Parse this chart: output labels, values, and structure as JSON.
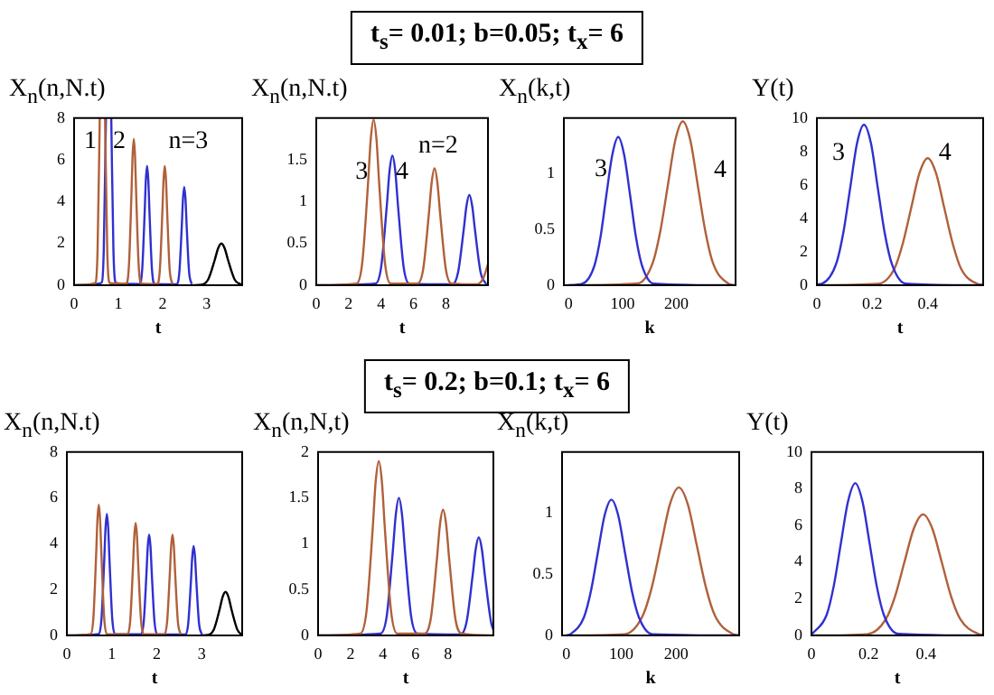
{
  "chart_data": [
    {
      "type": "other",
      "title": "t$_{s}$= 0.01; b=0.05; t$_{x}$= 6"
    },
    {
      "type": "line",
      "ylabel": "X$_{n}$(n,N.t)",
      "xlabel": "t",
      "xlim": [
        0,
        3.8
      ],
      "xticks": [
        0,
        1,
        2,
        3
      ],
      "ylim": [
        0,
        8
      ],
      "yticks": [
        0,
        2,
        4,
        6,
        8
      ],
      "marker": "none",
      "series": [
        {
          "color": "#b0603a",
          "x": [
            0,
            0.47,
            0.53,
            0.58,
            0.64,
            0.7,
            0.75,
            0.81,
            1.18,
            1.24,
            1.295,
            1.322,
            1.35,
            1.378,
            1.405,
            1.46,
            1.52,
            1.88,
            1.94,
            1.995,
            2.022,
            2.05,
            2.078,
            2.105,
            2.16,
            2.22
          ],
          "values": [
            0,
            0.1,
            1.6,
            8,
            null,
            8,
            1.6,
            0.1,
            0.08,
            0.95,
            4.25,
            6.17,
            7,
            6.17,
            4.25,
            0.95,
            0.08,
            0.06,
            0.77,
            3.46,
            5.03,
            5.7,
            5.03,
            3.46,
            0.77,
            0.06
          ]
        },
        {
          "color": "#3030d0",
          "x": [
            0,
            0.61,
            0.67,
            0.72,
            0.78,
            0.84,
            0.89,
            0.95,
            1.48,
            1.54,
            1.595,
            1.622,
            1.65,
            1.678,
            1.705,
            1.76,
            1.82,
            2.32,
            2.38,
            2.435,
            2.462,
            2.49,
            2.518,
            2.545,
            2.6,
            2.66
          ],
          "values": [
            0,
            0.1,
            1.6,
            8,
            null,
            8,
            1.6,
            0.1,
            0.06,
            0.77,
            3.46,
            5.03,
            5.7,
            5.03,
            3.46,
            0.77,
            0.06,
            0.05,
            0.63,
            2.85,
            4.15,
            4.7,
            4.15,
            2.85,
            0.63,
            0.05
          ]
        },
        {
          "color": "#000000",
          "x": [
            2.7,
            2.88,
            3.03,
            3.18,
            3.255,
            3.33,
            3.405,
            3.48,
            3.63,
            3.78
          ],
          "values": [
            0,
            0.02,
            0.27,
            1.21,
            1.76,
            2,
            1.76,
            1.21,
            0.27,
            0.02
          ]
        }
      ],
      "annotations": [
        {
          "text": "1",
          "x": 0.37,
          "y": 6.9
        },
        {
          "text": "2",
          "x": 1.02,
          "y": 6.9
        },
        "n=3"
      ]
    },
    {
      "type": "line",
      "ylabel": "X$_{n}$(n,N.t)",
      "xlabel": "t",
      "xlim": [
        0,
        10.6
      ],
      "xticks": [
        0,
        2,
        4,
        6,
        8
      ],
      "ylim": [
        0,
        2
      ],
      "yticks": [
        0,
        0.5,
        1,
        1.5
      ],
      "marker": "none",
      "series": [
        {
          "color": "#b0603a",
          "x": [
            0,
            2.49,
            2.84,
            3.19,
            3.365,
            3.54,
            3.715,
            3.89,
            4.24,
            4.59,
            6.25,
            6.6,
            6.95,
            7.125,
            7.3,
            7.475,
            7.65,
            8,
            8.35,
            9.9,
            10.3,
            10.6
          ],
          "values": [
            0,
            0.02,
            0.27,
            1.2,
            1.75,
            1.98,
            1.75,
            1.2,
            0.27,
            0.02,
            0.02,
            0.19,
            0.85,
            1.23,
            1.4,
            1.23,
            0.85,
            0.19,
            0.02,
            0.01,
            0.08,
            0.25
          ]
        },
        {
          "color": "#3030d0",
          "x": [
            0,
            3.65,
            4,
            4.35,
            4.525,
            4.7,
            4.875,
            5.05,
            5.4,
            5.75,
            8.4,
            8.75,
            9.1,
            9.275,
            9.45,
            9.625,
            9.8,
            10.15,
            10.5
          ],
          "values": [
            0,
            0.02,
            0.21,
            0.94,
            1.37,
            1.55,
            1.37,
            0.94,
            0.21,
            0.02,
            0.01,
            0.15,
            0.66,
            0.95,
            1.08,
            0.95,
            0.66,
            0.15,
            0.01
          ]
        }
      ],
      "annotations": [
        {
          "text": "3",
          "x": 2.8,
          "y": 1.35
        },
        {
          "text": "4",
          "x": 5.3,
          "y": 1.35
        },
        "n=2"
      ]
    },
    {
      "type": "line",
      "ylabel": "X$_{n}$(k,t)",
      "xlabel": "k",
      "xlim": [
        -9,
        310
      ],
      "xticks": [
        0,
        100,
        200
      ],
      "ylim": [
        0,
        1.5
      ],
      "yticks": [
        0,
        0.5,
        1
      ],
      "marker": "none",
      "series": [
        {
          "color": "#3030d0",
          "x": [
            0,
            26,
            48,
            59,
            70,
            81,
            92,
            103,
            114,
            125,
            136,
            158,
            300
          ],
          "values": [
            0,
            0.015,
            0.18,
            0.43,
            0.81,
            1.17,
            1.33,
            1.17,
            0.81,
            0.43,
            0.18,
            0.015,
            0
          ]
        },
        {
          "color": "#b0603a",
          "x": [
            0,
            128,
            156,
            170,
            184,
            198,
            212,
            226,
            240,
            254,
            268,
            296,
            310
          ],
          "values": [
            0,
            0.016,
            0.2,
            0.48,
            0.89,
            1.3,
            1.47,
            1.3,
            0.89,
            0.48,
            0.2,
            0.016,
            0
          ]
        }
      ],
      "annotations": [
        {
          "text": "3",
          "x": 60,
          "y": 1.04
        },
        "4"
      ]
    },
    {
      "type": "line",
      "ylabel": "Y(t)",
      "xlabel": "t",
      "xlim": [
        0,
        0.6
      ],
      "xticks": [
        0,
        0.2,
        0.4
      ],
      "ylim": [
        0,
        10
      ],
      "yticks": [
        0,
        2,
        4,
        6,
        8,
        10
      ],
      "marker": "none",
      "series": [
        {
          "color": "#3030d0",
          "x": [
            0,
            0.02,
            0.07,
            0.095,
            0.12,
            0.145,
            0.17,
            0.195,
            0.22,
            0.245,
            0.27,
            0.32,
            0.6
          ],
          "values": [
            0.05,
            0.1,
            1.3,
            3.1,
            5.8,
            8.5,
            9.6,
            8.5,
            5.8,
            3.1,
            1.3,
            0.1,
            0
          ]
        },
        {
          "color": "#b0603a",
          "x": [
            0,
            0.22,
            0.28,
            0.31,
            0.34,
            0.37,
            0.4,
            0.43,
            0.46,
            0.49,
            0.52,
            0.58,
            0.6
          ],
          "values": [
            0,
            0.08,
            1,
            2.5,
            4.6,
            6.7,
            7.6,
            6.7,
            4.6,
            2.5,
            1,
            0.08,
            0.03
          ]
        }
      ],
      "annotations": [
        "3",
        "4"
      ]
    },
    {
      "type": "other",
      "title": "t$_{s}$= 0.2; b=0.1; t$_{x}$= 6"
    },
    {
      "type": "line",
      "ylabel": "X$_{n}$(n,N.t)",
      "xlabel": "t",
      "xlim": [
        0,
        3.9
      ],
      "xticks": [
        0,
        1,
        2,
        3
      ],
      "ylim": [
        0,
        8
      ],
      "yticks": [
        0,
        2,
        4,
        6,
        8
      ],
      "marker": "none",
      "series": [
        {
          "color": "#b0603a",
          "x": [
            0,
            0.53,
            0.59,
            0.65,
            0.68,
            0.71,
            0.74,
            0.77,
            0.83,
            0.89,
            1.35,
            1.41,
            1.47,
            1.5,
            1.53,
            1.56,
            1.59,
            1.65,
            1.71,
            2.17,
            2.23,
            2.29,
            2.32,
            2.35,
            2.38,
            2.41,
            2.47,
            2.53
          ],
          "values": [
            0,
            0.06,
            0.77,
            3.46,
            5.03,
            5.7,
            5.03,
            3.46,
            0.77,
            0.06,
            0.05,
            0.66,
            2.97,
            4.32,
            4.9,
            4.32,
            2.97,
            0.66,
            0.05,
            0.05,
            0.59,
            2.67,
            3.88,
            4.4,
            3.88,
            2.67,
            0.59,
            0.05
          ]
        },
        {
          "color": "#3030d0",
          "x": [
            0,
            0.71,
            0.77,
            0.83,
            0.86,
            0.89,
            0.92,
            0.95,
            1.01,
            1.07,
            1.65,
            1.71,
            1.77,
            1.8,
            1.83,
            1.86,
            1.89,
            1.95,
            2.01,
            2.64,
            2.7,
            2.76,
            2.79,
            2.82,
            2.85,
            2.88,
            2.94,
            3
          ],
          "values": [
            0,
            0.06,
            0.72,
            3.22,
            4.67,
            5.3,
            4.67,
            3.22,
            0.72,
            0.06,
            0.05,
            0.59,
            2.67,
            3.88,
            4.4,
            3.88,
            2.67,
            0.59,
            0.05,
            0.04,
            0.53,
            2.37,
            3.44,
            3.9,
            3.44,
            2.37,
            0.53,
            0.04
          ]
        },
        {
          "color": "#000000",
          "x": [
            3,
            3.14,
            3.27,
            3.4,
            3.465,
            3.53,
            3.595,
            3.66,
            3.79,
            3.9
          ],
          "values": [
            0,
            0.02,
            0.26,
            1.15,
            1.68,
            1.9,
            1.68,
            1.15,
            0.26,
            0.01
          ]
        }
      ]
    },
    {
      "type": "line",
      "ylabel": "X$_{n}$(n,N,t)",
      "xlabel": "t",
      "xlim": [
        0,
        10.8
      ],
      "xticks": [
        0,
        2,
        4,
        6,
        8
      ],
      "ylim": [
        0,
        2
      ],
      "yticks": [
        0,
        0.5,
        1,
        1.5,
        2
      ],
      "marker": "none",
      "series": [
        {
          "color": "#b0603a",
          "x": [
            0,
            2.6,
            2.98,
            3.36,
            3.55,
            3.74,
            3.93,
            4.12,
            4.5,
            4.88,
            6.56,
            6.94,
            7.32,
            7.51,
            7.7,
            7.89,
            8.08,
            8.46,
            8.84,
            10.8
          ],
          "values": [
            0,
            0.02,
            0.26,
            1.15,
            1.68,
            1.9,
            1.68,
            1.15,
            0.26,
            0.02,
            0.02,
            0.18,
            0.83,
            1.21,
            1.37,
            1.21,
            0.83,
            0.18,
            0.02,
            0
          ]
        },
        {
          "color": "#3030d0",
          "x": [
            0,
            3.84,
            4.22,
            4.6,
            4.79,
            4.98,
            5.17,
            5.36,
            5.74,
            6.12,
            8.76,
            9.14,
            9.52,
            9.71,
            9.9,
            10.09,
            10.28,
            10.66,
            10.8
          ],
          "values": [
            0,
            0.02,
            0.2,
            0.91,
            1.32,
            1.5,
            1.32,
            0.91,
            0.2,
            0.02,
            0.01,
            0.14,
            0.65,
            0.94,
            1.07,
            0.94,
            0.65,
            0.14,
            0.06
          ]
        }
      ]
    },
    {
      "type": "line",
      "ylabel": "X$_{n}$(k,t)",
      "xlabel": "k",
      "xlim": [
        -8,
        315
      ],
      "xticks": [
        0,
        100,
        200
      ],
      "ylim": [
        0,
        1.5
      ],
      "yticks": [
        0,
        0.5,
        1
      ],
      "marker": "none",
      "series": [
        {
          "color": "#3030d0",
          "x": [
            0,
            7,
            32,
            44.5,
            57,
            69.5,
            82,
            94.5,
            107,
            119.5,
            132,
            157,
            315
          ],
          "values": [
            0,
            0.01,
            0.15,
            0.36,
            0.67,
            0.98,
            1.11,
            0.98,
            0.67,
            0.36,
            0.15,
            0.01,
            0
          ]
        },
        {
          "color": "#b0603a",
          "x": [
            0,
            106,
            139,
            155.5,
            172,
            188.5,
            205,
            221.5,
            238,
            254.5,
            271,
            304,
            315
          ],
          "values": [
            0,
            0.01,
            0.16,
            0.39,
            0.73,
            1.07,
            1.21,
            1.07,
            0.73,
            0.39,
            0.16,
            0.01,
            0
          ]
        }
      ]
    },
    {
      "type": "line",
      "ylabel": "Y(t)",
      "xlabel": "t",
      "xlim": [
        0,
        0.6
      ],
      "xticks": [
        0,
        0.2,
        0.4
      ],
      "ylim": [
        0,
        10
      ],
      "yticks": [
        0,
        2,
        4,
        6,
        8,
        10
      ],
      "marker": "none",
      "series": [
        {
          "color": "#3030d0",
          "x": [
            0.003,
            0.053,
            0.078,
            0.103,
            0.128,
            0.153,
            0.178,
            0.203,
            0.228,
            0.253,
            0.303,
            0.6
          ],
          "values": [
            0.09,
            1.12,
            2.7,
            5.04,
            7.32,
            8.3,
            7.32,
            5.04,
            2.7,
            1.12,
            0.09,
            0
          ]
        },
        {
          "color": "#b0603a",
          "x": [
            0,
            0.195,
            0.26,
            0.2925,
            0.325,
            0.3575,
            0.39,
            0.4225,
            0.455,
            0.4875,
            0.52,
            0.585,
            0.6
          ],
          "values": [
            0,
            0.07,
            0.89,
            2.15,
            4.01,
            5.82,
            6.6,
            5.82,
            4.01,
            2.15,
            0.89,
            0.07,
            0.03
          ]
        }
      ]
    }
  ]
}
